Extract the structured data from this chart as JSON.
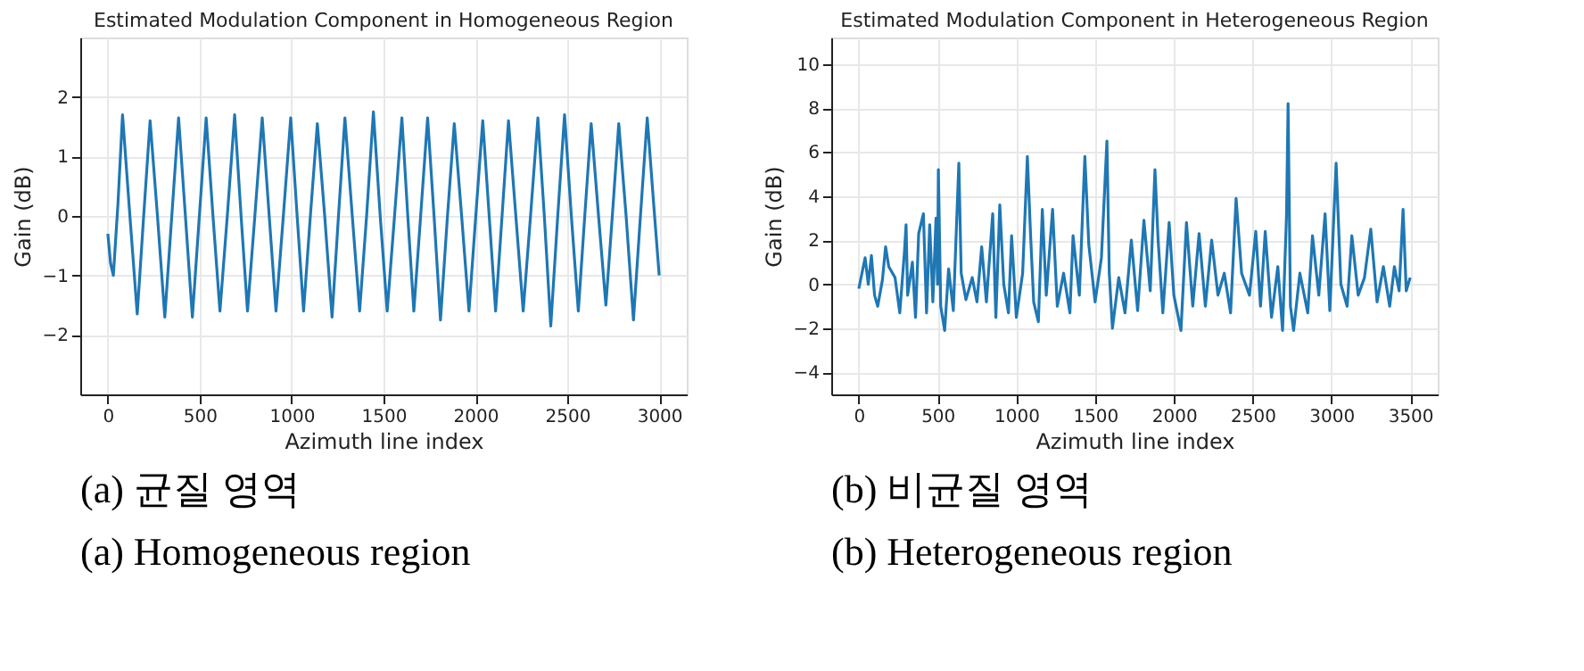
{
  "chart_data": [
    {
      "type": "line",
      "title": "Estimated Modulation Component in Homogeneous Region",
      "xlabel": "Azimuth line index",
      "ylabel": "Gain (dB)",
      "annotations": [
        "(a) 균질 영역",
        "(a) Homogeneous region"
      ],
      "xlim": [
        -150,
        3150
      ],
      "xticks": [
        0,
        500,
        1000,
        1500,
        2000,
        2500,
        3000
      ],
      "ylim": [
        -3,
        3
      ],
      "yticks": [
        -2,
        -1,
        0,
        1,
        2
      ],
      "grid": true,
      "x": [
        0,
        15,
        30,
        55,
        80,
        120,
        160,
        195,
        230,
        270,
        310,
        348,
        385,
        422,
        460,
        498,
        535,
        572,
        610,
        650,
        690,
        725,
        760,
        800,
        840,
        878,
        915,
        955,
        995,
        1030,
        1065,
        1102,
        1140,
        1180,
        1220,
        1255,
        1290,
        1330,
        1370,
        1408,
        1445,
        1482,
        1520,
        1560,
        1600,
        1632,
        1665,
        1702,
        1740,
        1775,
        1810,
        1848,
        1885,
        1925,
        1965,
        2002,
        2040,
        2075,
        2110,
        2145,
        2180,
        2220,
        2260,
        2300,
        2340,
        2375,
        2410,
        2448,
        2485,
        2522,
        2560,
        2595,
        2630,
        2670,
        2710,
        2745,
        2780,
        2820,
        2860,
        2898,
        2935,
        2970,
        3000
      ],
      "series": [
        {
          "color": "#1f77b4",
          "values": [
            -0.3,
            -0.8,
            -1.0,
            0.2,
            1.7,
            0,
            -1.65,
            0,
            1.6,
            0,
            -1.7,
            0,
            1.65,
            0,
            -1.7,
            0,
            1.65,
            0,
            -1.6,
            0,
            1.7,
            0,
            -1.6,
            0,
            1.65,
            0,
            -1.6,
            0,
            1.65,
            0,
            -1.6,
            0,
            1.55,
            0,
            -1.7,
            0,
            1.65,
            0,
            -1.6,
            0,
            1.75,
            0,
            -1.6,
            0,
            1.65,
            0,
            -1.6,
            0,
            1.65,
            0,
            -1.75,
            0,
            1.55,
            0,
            -1.6,
            0,
            1.6,
            0,
            -1.6,
            0,
            1.6,
            0,
            -1.6,
            0,
            1.65,
            0,
            -1.85,
            0,
            1.7,
            0,
            -1.6,
            0,
            1.55,
            0,
            -1.5,
            0,
            1.55,
            0,
            -1.75,
            0,
            1.65,
            0.2,
            -1.0
          ]
        }
      ]
    },
    {
      "type": "line",
      "title": "Estimated Modulation Component in Heterogeneous Region",
      "xlabel": "Azimuth line index",
      "ylabel": "Gain (dB)",
      "annotations": [
        "(b) 비균질 영역",
        "(b) Heterogeneous region"
      ],
      "xlim": [
        -175,
        3675
      ],
      "xticks": [
        0,
        500,
        1000,
        1500,
        2000,
        2500,
        3000,
        3500
      ],
      "ylim": [
        -5,
        11.2
      ],
      "yticks": [
        -4,
        -2,
        0,
        2,
        4,
        6,
        8,
        10
      ],
      "grid": true,
      "x": [
        0,
        20,
        40,
        60,
        80,
        100,
        120,
        150,
        170,
        190,
        230,
        260,
        290,
        300,
        310,
        340,
        360,
        380,
        410,
        430,
        450,
        470,
        490,
        500,
        505,
        520,
        545,
        570,
        600,
        635,
        650,
        680,
        720,
        750,
        780,
        810,
        850,
        870,
        895,
        920,
        950,
        970,
        1000,
        1040,
        1070,
        1090,
        1110,
        1140,
        1165,
        1190,
        1230,
        1260,
        1300,
        1340,
        1360,
        1400,
        1435,
        1460,
        1500,
        1540,
        1575,
        1590,
        1610,
        1650,
        1690,
        1730,
        1770,
        1810,
        1850,
        1880,
        1900,
        1930,
        1970,
        2000,
        2045,
        2080,
        2120,
        2160,
        2200,
        2240,
        2280,
        2320,
        2360,
        2395,
        2430,
        2480,
        2520,
        2550,
        2580,
        2620,
        2660,
        2690,
        2715,
        2725,
        2740,
        2760,
        2800,
        2850,
        2880,
        2920,
        2960,
        2990,
        3030,
        3060,
        3100,
        3130,
        3170,
        3210,
        3250,
        3290,
        3330,
        3370,
        3400,
        3430,
        3455,
        3475,
        3500
      ],
      "series": [
        {
          "color": "#1f77b4",
          "values": [
            -0.2,
            0.5,
            1.2,
            0,
            1.3,
            -0.5,
            -1.0,
            0.2,
            1.7,
            0.8,
            0.3,
            -1.3,
            1.5,
            2.7,
            -0.5,
            1.0,
            -1.5,
            2.3,
            3.2,
            -1.3,
            2.7,
            -0.8,
            3.0,
            0,
            5.2,
            -1.0,
            -2.1,
            0.7,
            -1.2,
            5.5,
            0.5,
            -0.7,
            0.3,
            -0.8,
            1.7,
            -0.8,
            3.2,
            -1.5,
            3.6,
            0,
            -1.3,
            2.2,
            -1.5,
            0.5,
            5.8,
            2.3,
            -0.8,
            -1.7,
            3.4,
            -0.5,
            3.4,
            -1.0,
            0.5,
            -1.3,
            2.2,
            -0.5,
            5.8,
            1.8,
            -0.8,
            1.2,
            6.5,
            0.5,
            -2.0,
            0.3,
            -1.3,
            2.0,
            -1.2,
            2.9,
            -0.3,
            5.2,
            2.0,
            -1.3,
            2.8,
            -0.5,
            -2.1,
            2.8,
            -1.0,
            2.3,
            -1.0,
            2.0,
            -0.5,
            0.5,
            -1.3,
            3.9,
            0.5,
            -0.5,
            2.4,
            -1.0,
            2.4,
            -1.5,
            0.8,
            -2.1,
            3.1,
            8.2,
            -1.0,
            -2.1,
            0.5,
            -1.3,
            2.2,
            -0.5,
            3.2,
            -1.2,
            5.5,
            0,
            -1.0,
            2.2,
            -0.5,
            0.3,
            2.5,
            -0.8,
            0.8,
            -1.0,
            0.8,
            -0.3,
            3.4,
            -0.3,
            0.3
          ]
        }
      ]
    }
  ]
}
